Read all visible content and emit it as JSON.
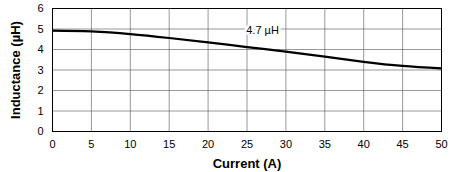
{
  "chart_data": {
    "type": "line",
    "xlabel": "Current (A)",
    "ylabel": "Inductance (µH)",
    "x": [
      0,
      5,
      10,
      15,
      20,
      25,
      30,
      35,
      40,
      45,
      50
    ],
    "series": [
      {
        "name": "4.7 µH",
        "color": "#000000",
        "values": [
          4.92,
          4.88,
          4.75,
          4.56,
          4.35,
          4.12,
          3.9,
          3.65,
          3.4,
          3.2,
          3.08
        ]
      }
    ],
    "annotations": [
      {
        "text": "4.7 µH",
        "x": 27,
        "y": 4.95
      }
    ],
    "xlim": [
      0,
      50
    ],
    "xticks": [
      0,
      5,
      10,
      15,
      20,
      25,
      30,
      35,
      40,
      45,
      50
    ],
    "ylim": [
      0,
      6
    ],
    "yticks": [
      0,
      1,
      2,
      3,
      4,
      5,
      6
    ],
    "grid": true
  }
}
